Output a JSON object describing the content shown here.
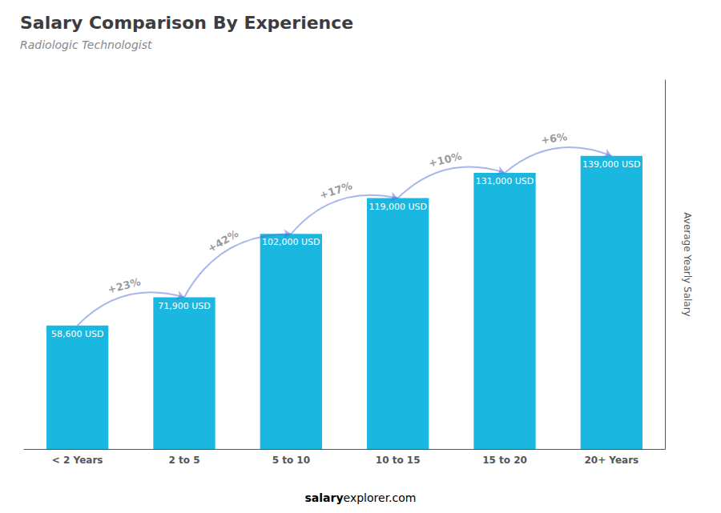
{
  "chart_data": {
    "type": "bar",
    "title": "Salary Comparison By Experience",
    "subtitle": "Radiologic Technologist",
    "categories": [
      "< 2 Years",
      "2 to 5",
      "5 to 10",
      "10 to 15",
      "15 to 20",
      "20+ Years"
    ],
    "values": [
      58600,
      71900,
      102000,
      119000,
      131000,
      139000
    ],
    "value_labels": [
      "58,600 USD",
      "71,900 USD",
      "102,000 USD",
      "119,000 USD",
      "131,000 USD",
      "139,000 USD"
    ],
    "data_labels": true,
    "color": "#1ab8e0",
    "ylabel": "Average Yearly Salary",
    "ylim": [
      0,
      175000
    ],
    "tick_labels": "x",
    "grid": false,
    "annotations": [
      "+23%",
      "+42%",
      "+17%",
      "+10%",
      "+6%"
    ],
    "footer": [
      "salary",
      "explorer.com"
    ]
  }
}
